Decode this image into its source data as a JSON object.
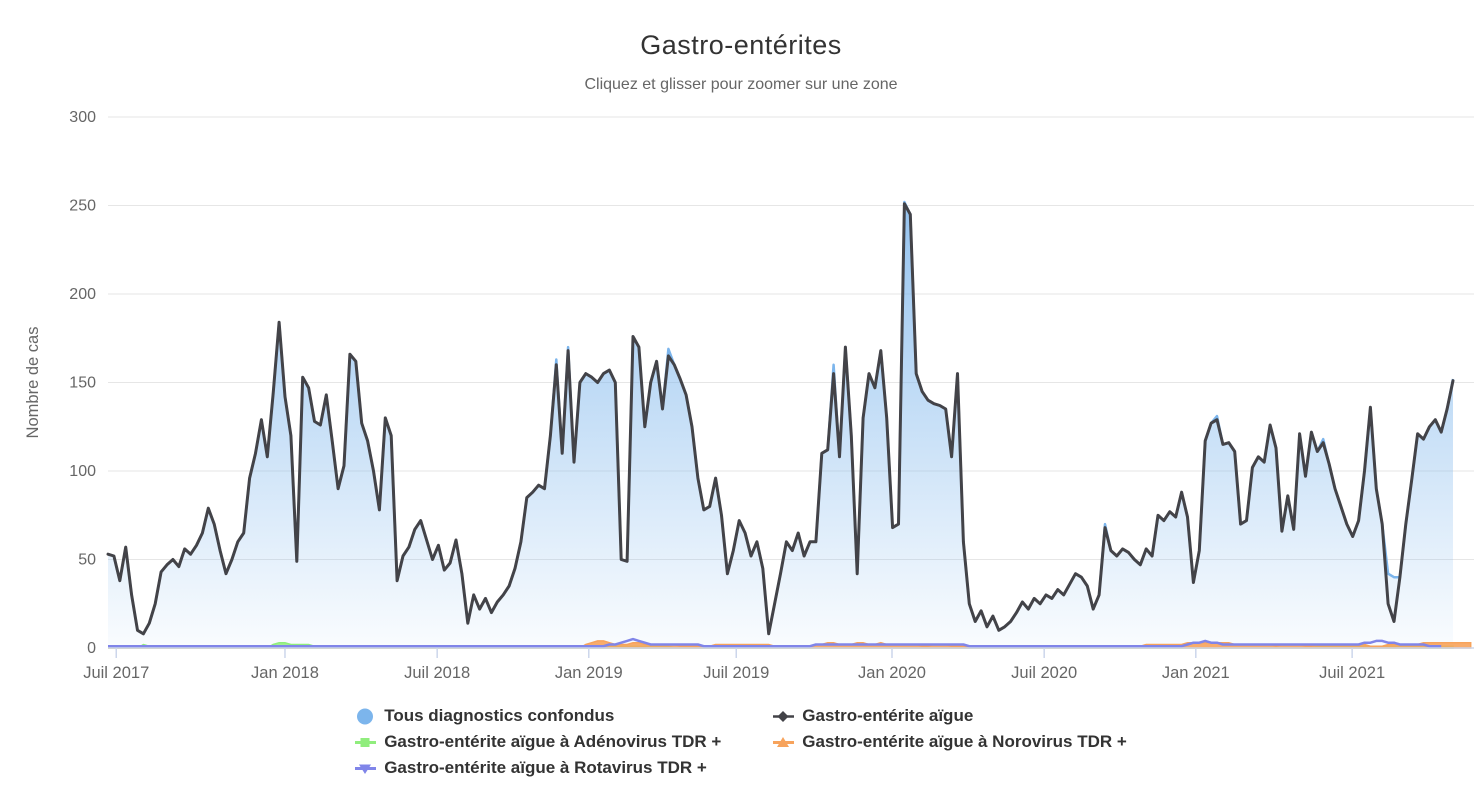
{
  "header": {
    "title": "Gastro-entérites",
    "subtitle": "Cliquez et glisser pour zoomer sur une zone"
  },
  "chart_data": {
    "type": "area",
    "title": "Gastro-entérites",
    "subtitle": "Cliquez et glisser pour zoomer sur une zone",
    "xlabel": "",
    "ylabel": "Nombre de cas",
    "ylim": [
      0,
      300
    ],
    "yticks": [
      0,
      50,
      100,
      150,
      200,
      250,
      300
    ],
    "x_unit": "semaine (données hebdomadaires, Juil 2017 - Nov 2021)",
    "grid": true,
    "legend_position": "bottom",
    "xticks": [
      {
        "label": "Juil 2017",
        "week": 1.4
      },
      {
        "label": "Jan 2018",
        "week": 30
      },
      {
        "label": "Juil 2018",
        "week": 55.8
      },
      {
        "label": "Jan 2019",
        "week": 81.5
      },
      {
        "label": "Juil 2019",
        "week": 106.5
      },
      {
        "label": "Jan 2020",
        "week": 132.9
      },
      {
        "label": "Juil 2020",
        "week": 158.7
      },
      {
        "label": "Jan 2021",
        "week": 184.4
      },
      {
        "label": "Juil 2021",
        "week": 210.9
      }
    ],
    "series": [
      {
        "name": "Tous diagnostics confondus",
        "type": "area",
        "color": "#7cb5ec",
        "marker": "circle",
        "values": [
          53,
          52,
          38,
          57,
          30,
          10,
          8,
          14,
          25,
          43,
          47,
          50,
          46,
          56,
          53,
          58,
          65,
          79,
          70,
          55,
          42,
          50,
          60,
          65,
          96,
          110,
          129,
          108,
          144,
          184,
          142,
          120,
          49,
          153,
          147,
          128,
          126,
          143,
          117,
          90,
          103,
          166,
          162,
          127,
          117,
          100,
          78,
          130,
          120,
          38,
          52,
          57,
          67,
          72,
          61,
          50,
          58,
          44,
          48,
          61,
          42,
          14,
          30,
          22,
          28,
          20,
          26,
          30,
          35,
          45,
          60,
          85,
          88,
          92,
          90,
          120,
          163,
          110,
          170,
          105,
          150,
          155,
          153,
          150,
          155,
          157,
          150,
          50,
          49,
          176,
          170,
          125,
          150,
          162,
          135,
          169,
          160,
          152,
          143,
          125,
          96,
          78,
          80,
          96,
          75,
          42,
          55,
          72,
          65,
          52,
          60,
          45,
          8,
          25,
          42,
          60,
          55,
          65,
          52,
          60,
          60,
          110,
          112,
          160,
          108,
          170,
          120,
          42,
          130,
          155,
          147,
          168,
          130,
          68,
          70,
          252,
          245,
          155,
          145,
          140,
          138,
          137,
          135,
          108,
          155,
          60,
          25,
          15,
          21,
          12,
          18,
          10,
          12,
          15,
          20,
          26,
          22,
          28,
          25,
          30,
          28,
          33,
          30,
          36,
          42,
          40,
          35,
          22,
          30,
          70,
          55,
          52,
          56,
          54,
          50,
          47,
          56,
          52,
          75,
          72,
          77,
          74,
          88,
          74,
          37,
          55,
          117,
          127,
          131,
          115,
          116,
          111,
          70,
          72,
          102,
          108,
          105,
          126,
          113,
          66,
          86,
          67,
          121,
          97,
          122,
          111,
          118,
          104,
          90,
          80,
          70,
          63,
          72,
          100,
          136,
          90,
          70,
          42,
          40,
          40,
          70,
          95,
          121,
          118,
          125,
          129,
          122,
          135,
          152
        ]
      },
      {
        "name": "Gastro-entérite aïgue",
        "type": "line",
        "color": "#434348",
        "marker": "diamond",
        "values": [
          53,
          52,
          38,
          57,
          30,
          10,
          8,
          14,
          25,
          43,
          47,
          50,
          46,
          56,
          53,
          58,
          65,
          79,
          70,
          55,
          42,
          50,
          60,
          65,
          96,
          110,
          129,
          108,
          144,
          184,
          142,
          120,
          49,
          153,
          147,
          128,
          126,
          143,
          117,
          90,
          103,
          166,
          162,
          127,
          117,
          100,
          78,
          130,
          120,
          38,
          52,
          57,
          67,
          72,
          61,
          50,
          58,
          44,
          48,
          61,
          42,
          14,
          30,
          22,
          28,
          20,
          26,
          30,
          35,
          45,
          60,
          85,
          88,
          92,
          90,
          120,
          160,
          110,
          168,
          105,
          150,
          155,
          153,
          150,
          155,
          157,
          150,
          50,
          49,
          176,
          170,
          125,
          150,
          162,
          135,
          165,
          160,
          152,
          143,
          125,
          96,
          78,
          80,
          96,
          75,
          42,
          55,
          72,
          65,
          52,
          60,
          45,
          8,
          25,
          42,
          60,
          55,
          65,
          52,
          60,
          60,
          110,
          112,
          155,
          108,
          170,
          120,
          42,
          130,
          155,
          147,
          168,
          130,
          68,
          70,
          251,
          245,
          155,
          145,
          140,
          138,
          137,
          135,
          108,
          155,
          60,
          25,
          15,
          21,
          12,
          18,
          10,
          12,
          15,
          20,
          26,
          22,
          28,
          25,
          30,
          28,
          33,
          30,
          36,
          42,
          40,
          35,
          22,
          30,
          68,
          55,
          52,
          56,
          54,
          50,
          47,
          56,
          52,
          75,
          72,
          77,
          74,
          88,
          74,
          37,
          55,
          117,
          127,
          129,
          115,
          116,
          111,
          70,
          72,
          102,
          108,
          105,
          126,
          113,
          66,
          86,
          67,
          121,
          97,
          122,
          111,
          116,
          104,
          90,
          80,
          70,
          63,
          72,
          100,
          136,
          90,
          70,
          25,
          15,
          40,
          70,
          95,
          121,
          118,
          125,
          129,
          122,
          135,
          151
        ]
      },
      {
        "name": "Gastro-entérite aïgue à Adénovirus TDR +",
        "type": "area",
        "color": "#90ed7d",
        "marker": "square",
        "values": [
          0,
          0,
          0,
          0,
          0,
          0,
          2,
          1,
          0,
          0,
          0,
          0,
          0,
          0,
          0,
          0,
          0,
          0,
          0,
          0,
          0,
          0,
          0,
          0,
          0,
          0,
          0,
          0,
          2,
          3,
          3,
          2,
          2,
          2,
          2,
          1,
          1,
          1,
          0,
          0,
          0,
          0,
          0,
          0,
          0,
          0,
          0,
          0,
          0,
          0,
          0,
          0,
          0,
          0,
          0,
          0,
          0,
          0,
          0,
          0,
          0,
          0,
          0,
          0,
          0,
          0,
          0,
          0,
          0,
          0,
          0,
          0,
          0,
          0,
          0,
          0,
          0,
          0,
          0,
          0,
          0,
          0,
          0,
          0,
          0,
          1,
          1,
          1,
          1,
          1,
          1,
          1,
          1,
          1,
          1,
          1,
          0,
          0,
          0,
          0,
          0,
          0,
          0,
          0,
          0,
          0,
          0,
          0,
          0,
          0,
          0,
          0,
          0,
          0,
          0,
          0,
          0,
          0,
          0,
          0,
          0,
          0,
          0,
          0,
          0,
          0,
          0,
          0,
          0,
          0,
          0,
          0,
          0,
          0,
          0,
          0,
          0,
          0,
          0,
          0,
          0,
          0,
          0,
          0,
          0,
          0,
          0,
          0,
          0,
          0,
          0,
          0,
          0,
          0,
          0,
          0,
          0,
          0,
          0,
          0,
          0,
          0,
          0,
          0,
          0,
          0,
          0,
          0,
          0,
          0,
          0,
          0,
          0,
          0,
          0,
          0,
          0,
          0,
          0,
          0,
          0,
          0,
          0,
          0,
          0,
          0,
          0,
          0,
          0,
          0,
          0,
          0,
          0,
          0,
          0,
          0,
          0,
          0,
          0,
          0,
          0,
          0,
          0,
          0,
          0,
          1,
          1,
          1,
          1,
          1,
          1,
          1,
          1,
          1,
          1,
          1,
          1,
          1,
          1,
          1,
          1,
          1,
          1,
          1,
          1,
          1,
          1,
          1,
          1
        ]
      },
      {
        "name": "Gastro-entérite aïgue à Norovirus TDR +",
        "type": "area",
        "color": "#f7a35c",
        "marker": "triangle-up",
        "values": [
          0,
          0,
          0,
          0,
          0,
          0,
          0,
          0,
          0,
          0,
          0,
          0,
          0,
          0,
          0,
          0,
          0,
          0,
          0,
          0,
          0,
          0,
          0,
          0,
          0,
          0,
          0,
          0,
          0,
          0,
          0,
          0,
          0,
          0,
          0,
          0,
          0,
          0,
          0,
          0,
          0,
          0,
          0,
          0,
          0,
          0,
          0,
          0,
          0,
          0,
          0,
          0,
          0,
          0,
          0,
          0,
          0,
          0,
          0,
          0,
          0,
          0,
          0,
          0,
          0,
          0,
          0,
          0,
          0,
          0,
          0,
          0,
          0,
          0,
          0,
          0,
          0,
          0,
          0,
          0,
          0,
          2,
          3,
          4,
          4,
          3,
          2,
          2,
          2,
          3,
          3,
          2,
          2,
          2,
          2,
          2,
          2,
          1,
          1,
          1,
          1,
          1,
          1,
          2,
          2,
          2,
          2,
          2,
          2,
          2,
          2,
          2,
          2,
          1,
          1,
          1,
          1,
          1,
          1,
          1,
          2,
          2,
          3,
          3,
          2,
          2,
          2,
          3,
          3,
          2,
          2,
          3,
          2,
          2,
          2,
          2,
          2,
          2,
          1,
          1,
          2,
          2,
          2,
          1,
          1,
          1,
          1,
          1,
          1,
          1,
          1,
          1,
          1,
          1,
          1,
          1,
          1,
          1,
          1,
          1,
          1,
          1,
          1,
          1,
          1,
          1,
          1,
          1,
          1,
          1,
          1,
          1,
          1,
          1,
          1,
          1,
          2,
          2,
          2,
          2,
          2,
          2,
          2,
          3,
          3,
          3,
          3,
          3,
          3,
          3,
          3,
          2,
          2,
          2,
          2,
          2,
          2,
          2,
          1,
          2,
          2,
          2,
          2,
          1,
          1,
          2,
          2,
          2,
          2,
          2,
          2,
          2,
          2,
          2,
          1,
          1,
          1,
          2,
          2,
          2,
          2,
          2,
          2,
          3,
          3,
          3,
          3,
          3,
          3,
          3,
          3,
          3
        ]
      },
      {
        "name": "Gastro-entérite aïgue à Rotavirus TDR +",
        "type": "line",
        "color": "#8085e9",
        "marker": "triangle-down",
        "values": [
          1,
          1,
          1,
          1,
          1,
          1,
          1,
          1,
          1,
          1,
          1,
          1,
          1,
          1,
          1,
          1,
          1,
          1,
          1,
          1,
          1,
          1,
          1,
          1,
          1,
          1,
          1,
          1,
          1,
          1,
          1,
          1,
          1,
          1,
          1,
          1,
          1,
          1,
          1,
          1,
          1,
          1,
          1,
          1,
          1,
          1,
          1,
          1,
          1,
          1,
          1,
          1,
          1,
          1,
          1,
          1,
          1,
          1,
          1,
          1,
          1,
          1,
          1,
          1,
          1,
          1,
          1,
          1,
          1,
          1,
          1,
          1,
          1,
          1,
          1,
          1,
          1,
          1,
          1,
          1,
          1,
          1,
          1,
          1,
          1,
          2,
          2,
          3,
          4,
          5,
          4,
          3,
          2,
          2,
          2,
          2,
          2,
          2,
          2,
          2,
          2,
          1,
          1,
          1,
          1,
          1,
          1,
          1,
          1,
          1,
          1,
          1,
          1,
          1,
          1,
          1,
          1,
          1,
          1,
          1,
          2,
          2,
          2,
          2,
          2,
          2,
          2,
          2,
          2,
          2,
          2,
          2,
          2,
          2,
          2,
          2,
          2,
          2,
          2,
          2,
          2,
          2,
          2,
          2,
          2,
          2,
          1,
          1,
          1,
          1,
          1,
          1,
          1,
          1,
          1,
          1,
          1,
          1,
          1,
          1,
          1,
          1,
          1,
          1,
          1,
          1,
          1,
          1,
          1,
          1,
          1,
          1,
          1,
          1,
          1,
          1,
          1,
          1,
          1,
          1,
          1,
          1,
          1,
          2,
          3,
          3,
          4,
          3,
          3,
          2,
          2,
          2,
          2,
          2,
          2,
          2,
          2,
          2,
          2,
          2,
          2,
          2,
          2,
          2,
          2,
          2,
          2,
          2,
          2,
          2,
          2,
          2,
          2,
          3,
          3,
          4,
          4,
          3,
          3,
          2,
          2,
          2,
          2,
          2,
          1,
          1,
          1
        ]
      }
    ]
  },
  "legend": {
    "items": [
      {
        "label": "Tous diagnostics confondus",
        "marker": "circle",
        "color": "#7cb5ec"
      },
      {
        "label": "Gastro-entérite aïgue",
        "marker": "diamond",
        "color": "#434348"
      },
      {
        "label": "Gastro-entérite aïgue à Adénovirus TDR +",
        "marker": "square",
        "color": "#90ed7d"
      },
      {
        "label": "Gastro-entérite aïgue à Norovirus TDR +",
        "marker": "triangle-up",
        "color": "#f7a35c"
      },
      {
        "label": "Gastro-entérite aïgue à Rotavirus TDR +",
        "marker": "triangle-down",
        "color": "#8085e9"
      }
    ]
  },
  "style": {
    "grid_color": "#e6e6e6",
    "axis_line_color": "#ccd6eb",
    "label_color": "#666666",
    "title_color": "#333333",
    "legend_text_color": "#333333",
    "background": "#ffffff"
  }
}
